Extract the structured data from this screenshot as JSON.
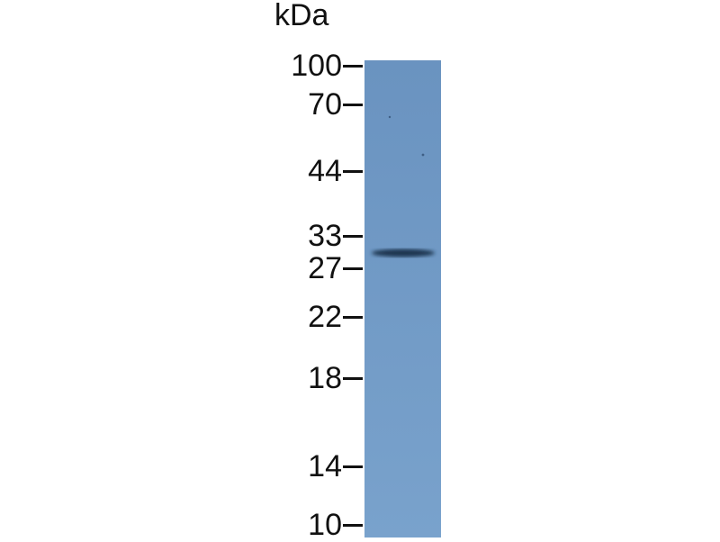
{
  "unit_label": "kDa",
  "markers": [
    {
      "label": "100",
      "kda": 100
    },
    {
      "label": "70",
      "kda": 70
    },
    {
      "label": "44",
      "kda": 44
    },
    {
      "label": "33",
      "kda": 33
    },
    {
      "label": "27",
      "kda": 27
    },
    {
      "label": "22",
      "kda": 22
    },
    {
      "label": "18",
      "kda": 18
    },
    {
      "label": "14",
      "kda": 14
    },
    {
      "label": "10",
      "kda": 10
    }
  ],
  "lane_color": "#6f98c4",
  "band": {
    "approx_kda": 29,
    "color": "#1f3550"
  }
}
